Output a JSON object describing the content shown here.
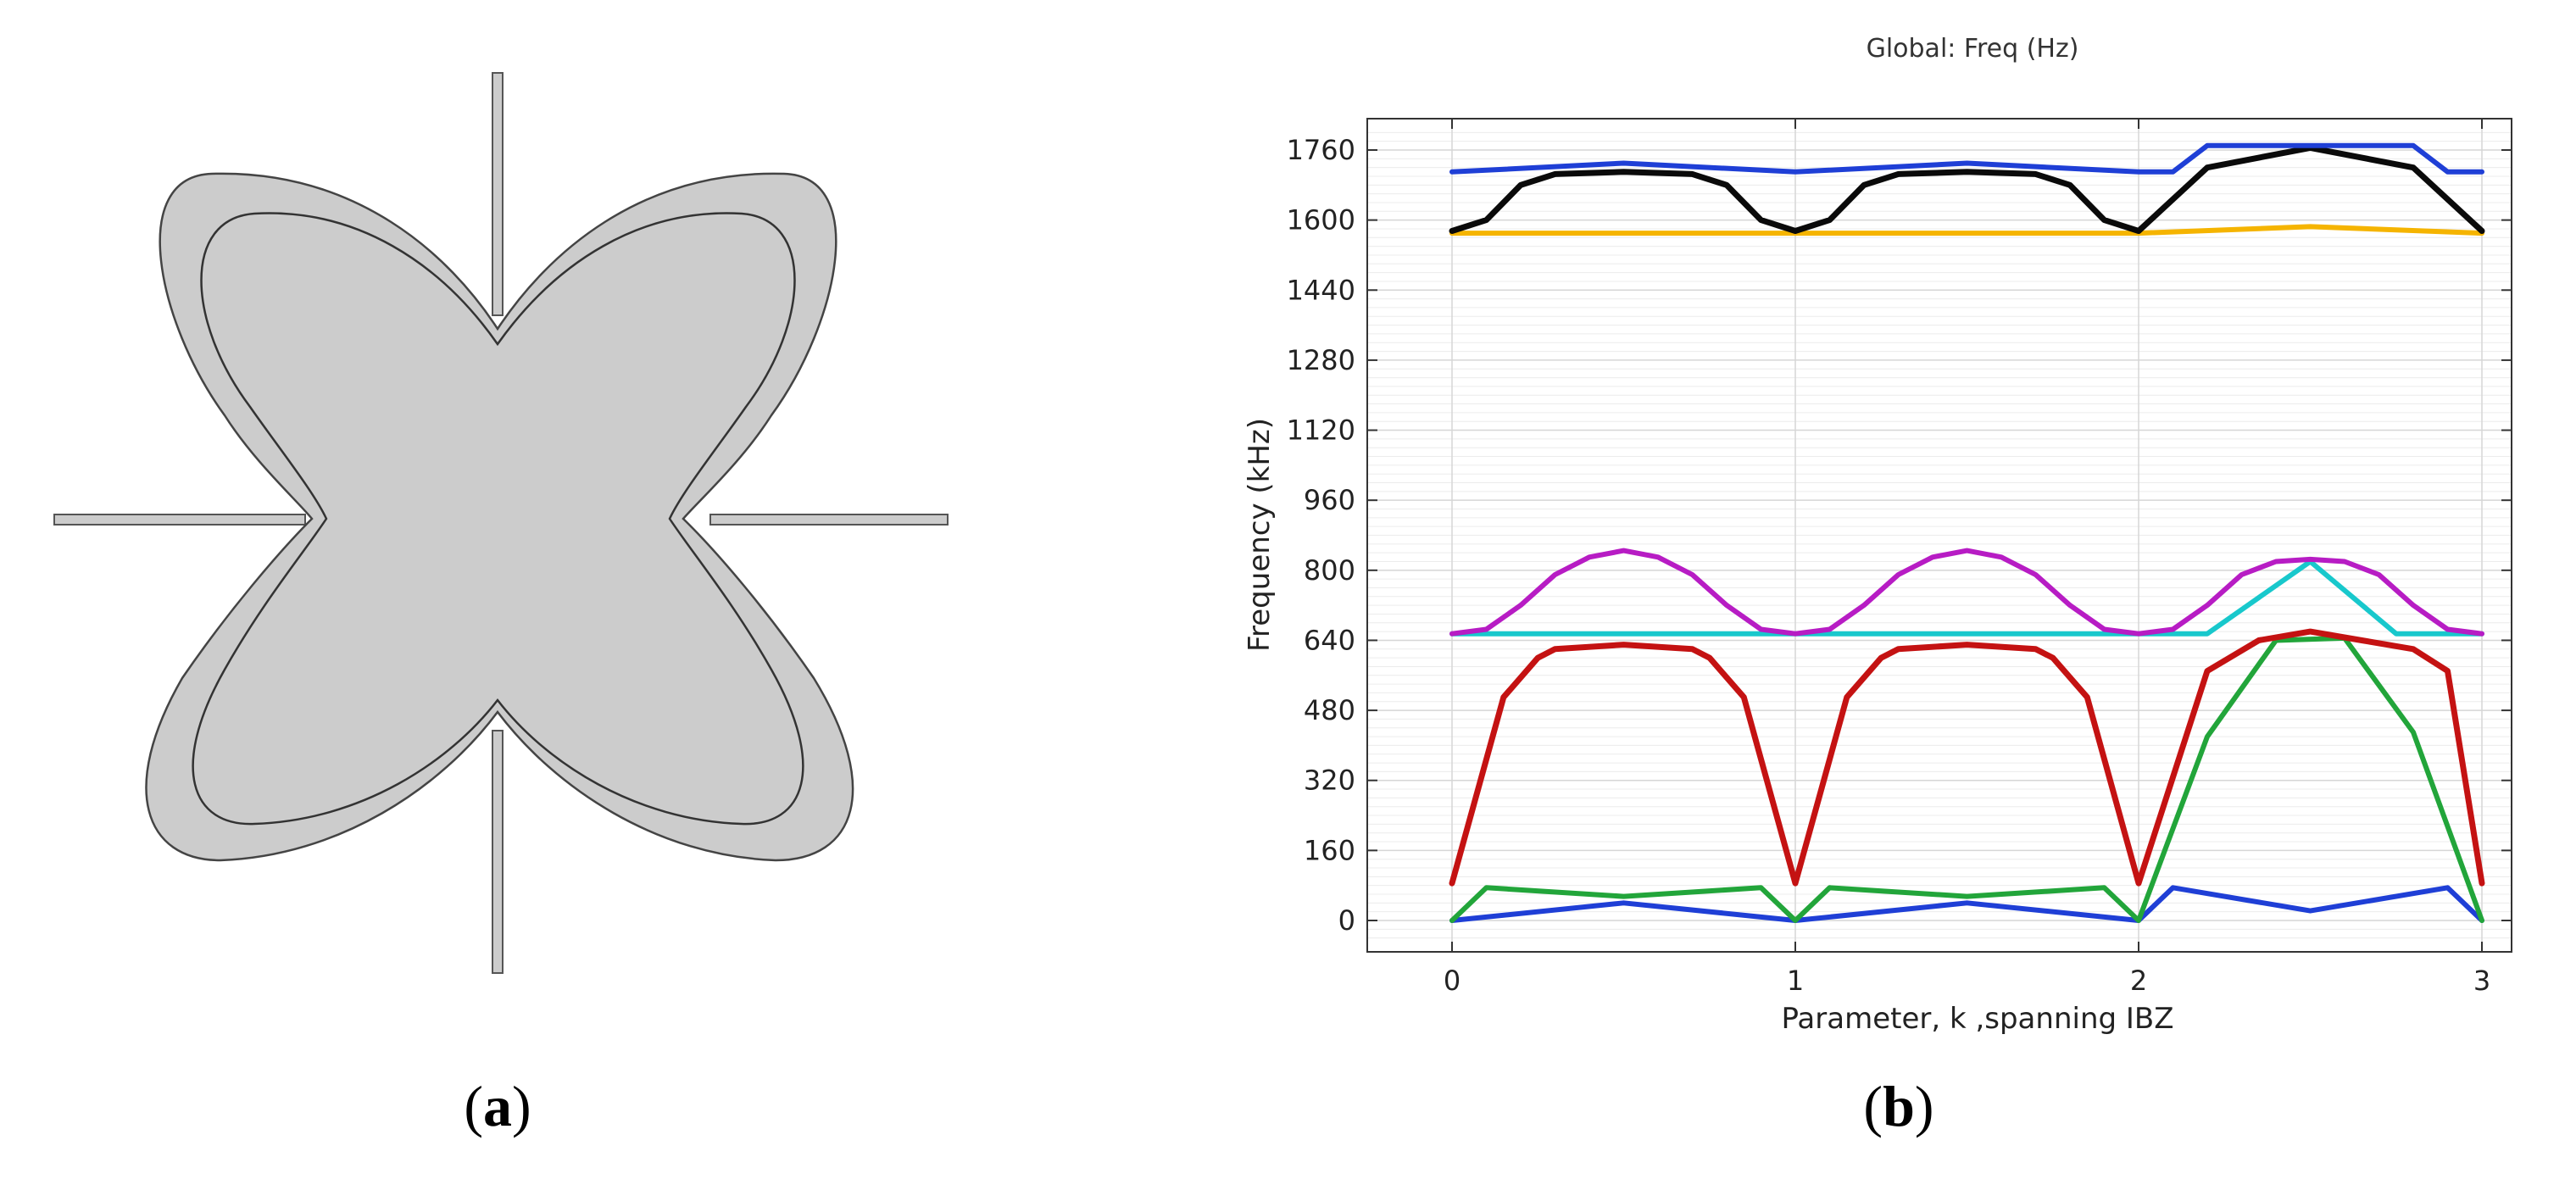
{
  "panel_a": {
    "label_open": "(",
    "label_letter": "a",
    "label_close": ")"
  },
  "panel_b": {
    "label_open": "(",
    "label_letter": "b",
    "label_close": ")"
  },
  "chart_data": {
    "type": "line",
    "title": "Global: Freq (Hz)",
    "xlabel": "Parameter, k ,spanning IBZ",
    "ylabel": "Frequency (kHz)",
    "xlim": [
      0,
      3
    ],
    "ylim": [
      -60,
      1810
    ],
    "xticks": [
      0,
      1,
      2,
      3
    ],
    "yticks": [
      0,
      160,
      320,
      480,
      640,
      800,
      960,
      1120,
      1280,
      1440,
      1600,
      1760
    ],
    "grid": true,
    "legend": "none",
    "series": [
      {
        "color": "#1f3fd6",
        "x": [
          0,
          0.5,
          1,
          1.5,
          2,
          2.1,
          2.5,
          2.9,
          3
        ],
        "y": [
          0,
          40,
          0,
          40,
          0,
          75,
          22,
          75,
          0
        ]
      },
      {
        "color": "#22a53a",
        "x": [
          0,
          0.1,
          0.5,
          0.9,
          1,
          1.1,
          1.5,
          1.9,
          2,
          2.2,
          2.4,
          2.6,
          2.8,
          3
        ],
        "y": [
          0,
          75,
          55,
          75,
          0,
          75,
          55,
          75,
          0,
          420,
          640,
          645,
          430,
          0
        ]
      },
      {
        "color": "#c41212",
        "x": [
          0,
          0.15,
          0.25,
          0.3,
          0.5,
          0.7,
          0.75,
          0.85,
          1,
          1.15,
          1.25,
          1.3,
          1.5,
          1.7,
          1.75,
          1.85,
          2,
          2.2,
          2.35,
          2.5,
          2.65,
          2.8,
          2.9,
          3
        ],
        "y": [
          85,
          510,
          600,
          620,
          630,
          620,
          600,
          510,
          85,
          510,
          600,
          620,
          630,
          620,
          600,
          510,
          85,
          570,
          640,
          660,
          640,
          620,
          570,
          85
        ],
        "width": 7
      },
      {
        "color": "#18c8cc",
        "x": [
          0,
          2.2,
          2.5,
          2.75,
          3
        ],
        "y": [
          655,
          655,
          820,
          655,
          655
        ]
      },
      {
        "color": "#b71cc4",
        "x": [
          0,
          0.1,
          0.2,
          0.3,
          0.4,
          0.5,
          0.6,
          0.7,
          0.8,
          0.9,
          1,
          1.1,
          1.2,
          1.3,
          1.4,
          1.5,
          1.6,
          1.7,
          1.8,
          1.9,
          2,
          2.1,
          2.2,
          2.3,
          2.4,
          2.5,
          2.6,
          2.7,
          2.8,
          2.9,
          3
        ],
        "y": [
          655,
          665,
          720,
          790,
          830,
          845,
          830,
          790,
          720,
          665,
          655,
          665,
          720,
          790,
          830,
          845,
          830,
          790,
          720,
          665,
          655,
          665,
          720,
          790,
          820,
          825,
          820,
          790,
          720,
          665,
          655
        ]
      },
      {
        "color": "#f5b400",
        "x": [
          0,
          1,
          2,
          2.5,
          3
        ],
        "y": [
          1570,
          1570,
          1570,
          1585,
          1570
        ]
      },
      {
        "color": "#0a0a0a",
        "x": [
          0,
          0.1,
          0.2,
          0.3,
          0.5,
          0.7,
          0.8,
          0.9,
          1,
          1.1,
          1.2,
          1.3,
          1.5,
          1.7,
          1.8,
          1.9,
          2,
          2.2,
          2.5,
          2.8,
          3
        ],
        "y": [
          1575,
          1600,
          1680,
          1705,
          1710,
          1705,
          1680,
          1600,
          1575,
          1600,
          1680,
          1705,
          1710,
          1705,
          1680,
          1600,
          1575,
          1720,
          1765,
          1720,
          1575
        ],
        "width": 7
      },
      {
        "color": "#1f3fd6",
        "x": [
          0,
          0.5,
          1,
          1.5,
          2,
          2.1,
          2.2,
          2.5,
          2.8,
          2.9,
          3
        ],
        "y": [
          1710,
          1730,
          1710,
          1730,
          1710,
          1710,
          1770,
          1770,
          1770,
          1710,
          1710
        ]
      }
    ]
  }
}
